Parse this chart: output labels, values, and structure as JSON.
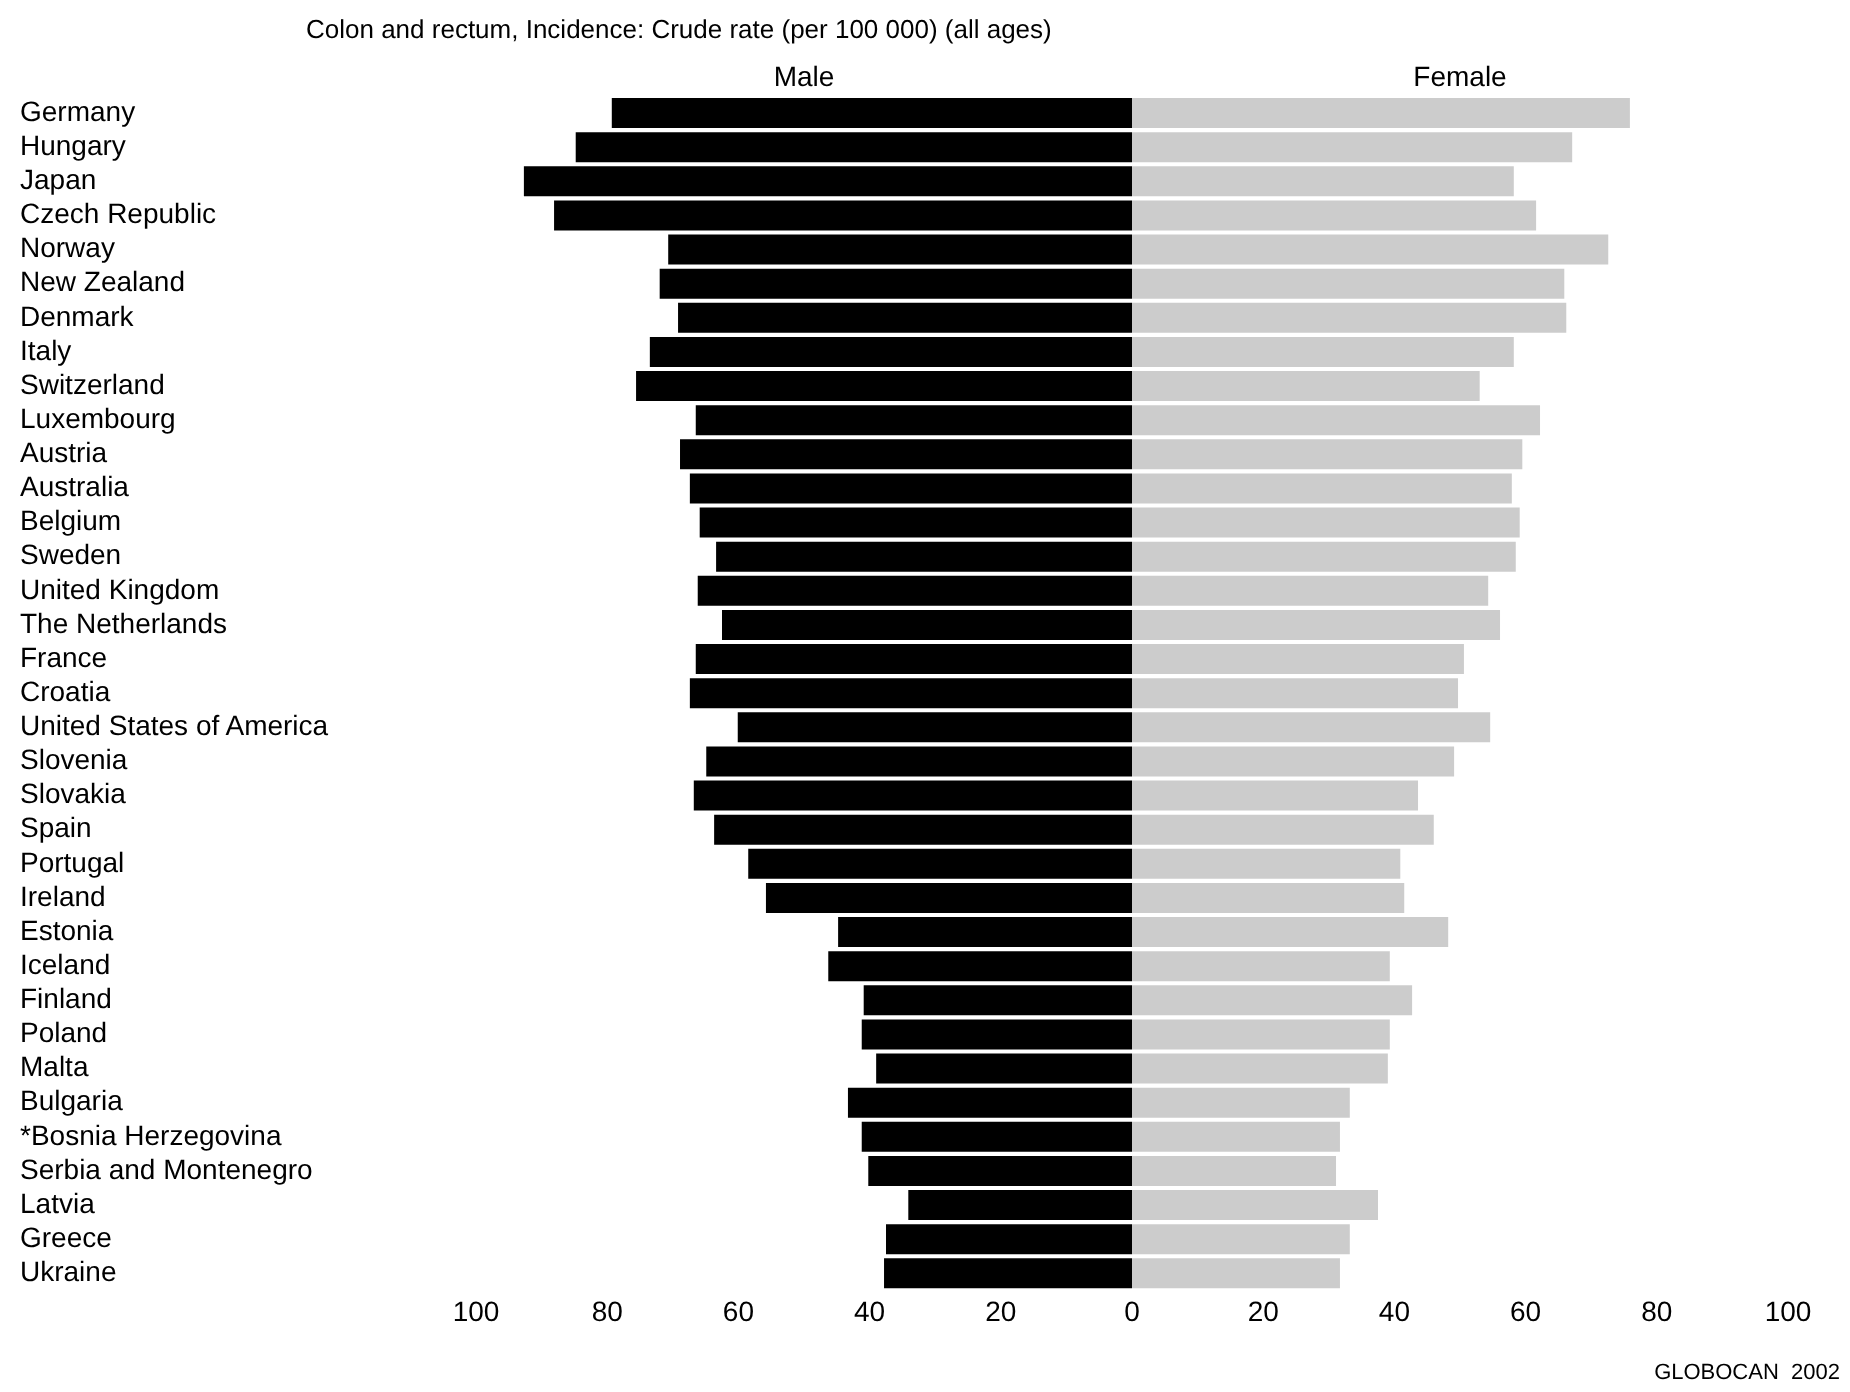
{
  "chart_data": {
    "type": "bar",
    "orientation": "horizontal",
    "stacked": true,
    "title": "Colon and rectum, Incidence: Crude rate (per 100 000) (all ages)",
    "categories": [
      "Germany",
      "Hungary",
      "Japan",
      "Czech Republic",
      "Norway",
      "New Zealand",
      "Denmark",
      "Italy",
      "Switzerland",
      "Luxembourg",
      "Austria",
      "Australia",
      "Belgium",
      "Sweden",
      "United Kingdom",
      "The Netherlands",
      "France",
      "Croatia",
      "United States of America",
      "Slovenia",
      "Slovakia",
      "Spain",
      "Portugal",
      "Ireland",
      "Estonia",
      "Iceland",
      "Finland",
      "Poland",
      "Malta",
      "Bulgaria",
      "*Bosnia Herzegovina",
      "Serbia and Montenegro",
      "Latvia",
      "Greece",
      "Ukraine"
    ],
    "series": [
      {
        "name": "Male",
        "color": "#000000",
        "values": [
          -79.3,
          -84.8,
          -92.7,
          -88.1,
          -70.7,
          -72,
          -69.2,
          -73.5,
          -75.6,
          -66.5,
          -68.9,
          -67.4,
          -65.9,
          -63.4,
          -66.2,
          -62.5,
          -66.5,
          -67.4,
          -60.1,
          -64.9,
          -66.8,
          -63.7,
          -58.5,
          -55.8,
          -44.8,
          -46.3,
          -40.9,
          -41.2,
          -39,
          -43.3,
          -41.2,
          -40.2,
          -34.1,
          -37.5,
          -37.8
        ]
      },
      {
        "name": "Female",
        "color": "#cccccc",
        "values": [
          75.9,
          67.1,
          58.2,
          61.6,
          72.6,
          65.9,
          66.2,
          58.2,
          53,
          62.2,
          59.5,
          57.9,
          59.1,
          58.5,
          54.3,
          56.1,
          50.6,
          49.7,
          54.6,
          49.1,
          43.6,
          46,
          40.9,
          41.5,
          48.2,
          39.3,
          42.7,
          39.3,
          39,
          33.2,
          31.7,
          31.1,
          37.5,
          33.2,
          31.7
        ]
      }
    ],
    "xlim": [
      -100,
      100
    ],
    "xticks": [
      {
        "value": -100,
        "label": "100"
      },
      {
        "value": -80,
        "label": "80"
      },
      {
        "value": -60,
        "label": "60"
      },
      {
        "value": -40,
        "label": "40"
      },
      {
        "value": -20,
        "label": "20"
      },
      0,
      20,
      40,
      60,
      80,
      100
    ],
    "grid": false,
    "legend": false,
    "annotations": [
      "GLOBOCAN  2002"
    ]
  }
}
